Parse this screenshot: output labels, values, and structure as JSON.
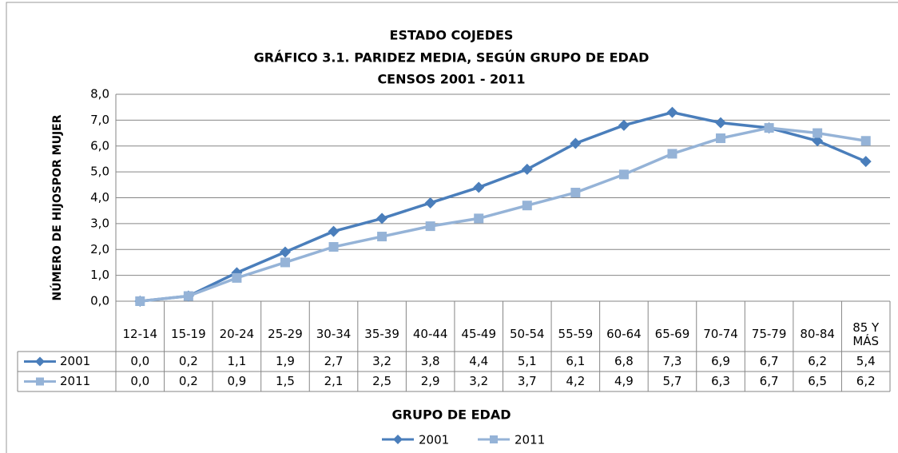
{
  "chart_data": {
    "type": "line",
    "title_lines": [
      "ESTADO COJEDES",
      "GRÁFICO 3.1. PARIDEZ MEDIA, SEGÚN GRUPO DE EDAD",
      "CENSOS 2001 - 2011"
    ],
    "x_label": "GRUPO DE EDAD",
    "y_label": "NÚMERO DE HIJOSPOR MUJER",
    "categories": [
      "12-14",
      "15-19",
      "20-24",
      "25-29",
      "30-34",
      "35-39",
      "40-44",
      "45-49",
      "50-54",
      "55-59",
      "60-64",
      "65-69",
      "70-74",
      "75-79",
      "80-84",
      "85 Y MÁS"
    ],
    "series": [
      {
        "name": "2001",
        "color": "#4a7ebb",
        "marker": "diamond",
        "values": [
          0.0,
          0.2,
          1.1,
          1.9,
          2.7,
          3.2,
          3.8,
          4.4,
          5.1,
          6.1,
          6.8,
          7.3,
          6.9,
          6.7,
          6.2,
          5.4
        ],
        "value_labels": [
          "0,0",
          "0,2",
          "1,1",
          "1,9",
          "2,7",
          "3,2",
          "3,8",
          "4,4",
          "5,1",
          "6,1",
          "6,8",
          "7,3",
          "6,9",
          "6,7",
          "6,2",
          "5,4"
        ]
      },
      {
        "name": "2011",
        "color": "#95b3d7",
        "marker": "square",
        "values": [
          0.0,
          0.2,
          0.9,
          1.5,
          2.1,
          2.5,
          2.9,
          3.2,
          3.7,
          4.2,
          4.9,
          5.7,
          6.3,
          6.7,
          6.5,
          6.2
        ],
        "value_labels": [
          "0,0",
          "0,2",
          "0,9",
          "1,5",
          "2,1",
          "2,5",
          "2,9",
          "3,2",
          "3,7",
          "4,2",
          "4,9",
          "5,7",
          "6,3",
          "6,7",
          "6,5",
          "6,2"
        ]
      }
    ],
    "ylim": [
      0,
      8
    ],
    "yticks": [
      {
        "value": 0,
        "label": "0,0"
      },
      {
        "value": 1,
        "label": "1,0"
      },
      {
        "value": 2,
        "label": "2,0"
      },
      {
        "value": 3,
        "label": "3,0"
      },
      {
        "value": 4,
        "label": "4,0"
      },
      {
        "value": 5,
        "label": "5,0"
      },
      {
        "value": 6,
        "label": "6,0"
      },
      {
        "value": 7,
        "label": "7,0"
      },
      {
        "value": 8,
        "label": "8,0"
      }
    ],
    "grid": true,
    "legend": "bottom"
  }
}
